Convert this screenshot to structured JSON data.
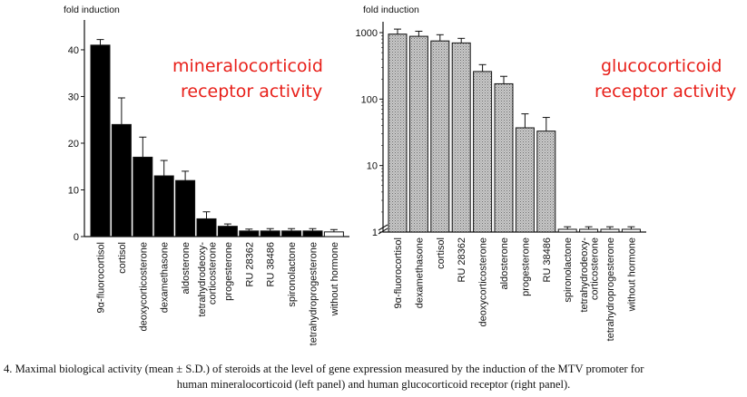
{
  "chart_data": [
    {
      "type": "bar",
      "ylabel": "fold induction",
      "annotation": "mineralocorticoid receptor activity",
      "annotation_color": "#e8201a",
      "bar_color": "#000000",
      "yscale": "linear",
      "ylim": [
        0,
        43
      ],
      "yticks": [
        0,
        10,
        20,
        30,
        40
      ],
      "categories": [
        "9α-fluorocortisol",
        "cortisol",
        "deoxycorticosterone",
        "dexamethasone",
        "aldosterone",
        "tetrahydrodeoxy-\ncorticosterone",
        "progesterone",
        "RU 28362",
        "RU 38486",
        "spironolactone",
        "tetrahydroprogesterone",
        "without hormone"
      ],
      "values": [
        41,
        24,
        17,
        13,
        12,
        3.8,
        2.2,
        1.2,
        1.2,
        1.2,
        1.2,
        1
      ],
      "errors": [
        1.2,
        5.7,
        4.3,
        3.3,
        2.0,
        1.5,
        0.5,
        0.4,
        0.5,
        0.5,
        0.5,
        0.5
      ],
      "last_bar_white": true,
      "grid": false
    },
    {
      "type": "bar",
      "ylabel": "fold induction",
      "annotation": "glucocorticoid receptor activity",
      "annotation_color": "#e8201a",
      "bar_color": "#b4b4b4",
      "yscale": "log",
      "ylim": [
        1,
        1000
      ],
      "yticks": [
        "1",
        "10",
        "100",
        "1000"
      ],
      "axis_break": true,
      "categories": [
        "9α-fluorocortisol",
        "dexamethasone",
        "cortisol",
        "RU 28362",
        "deoxycorticosterone",
        "aldosterone",
        "progesterone",
        "RU 38486",
        "spironolactone",
        "tetrahydrodeoxy-\ncorticosterone",
        "tetrahydroprogesterone",
        "without hormone"
      ],
      "values": [
        950,
        880,
        750,
        700,
        260,
        170,
        37,
        33,
        1.1,
        1.1,
        1.1,
        1.1
      ],
      "errors": [
        180,
        170,
        180,
        120,
        70,
        50,
        23,
        20,
        0.1,
        0.1,
        0.1,
        0.1
      ],
      "white_from_index": 8,
      "grid": false
    }
  ],
  "caption": {
    "line1": "4. Maximal biological activity (mean ± S.D.) of steroids at the level of gene expression measured by the induction of the MTV promoter for",
    "line2": "human mineralocorticoid (left panel) and human glucocorticoid receptor (right panel)."
  }
}
